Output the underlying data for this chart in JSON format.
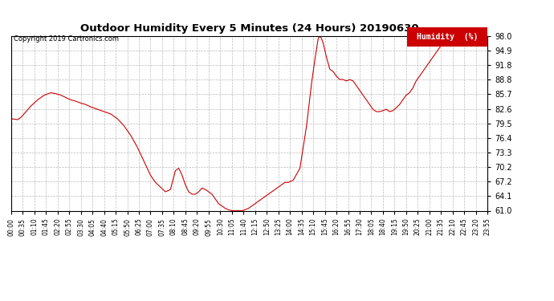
{
  "title": "Outdoor Humidity Every 5 Minutes (24 Hours) 20190630",
  "copyright": "Copyright 2019 Cartronics.com",
  "legend_label": "Humidity  (%)",
  "legend_bg": "#cc0000",
  "legend_fg": "#ffffff",
  "line_color": "#cc0000",
  "bg_color": "#ffffff",
  "plot_bg": "#ffffff",
  "grid_color": "#aaaaaa",
  "ylim": [
    61.0,
    98.0
  ],
  "yticks": [
    61.0,
    64.1,
    67.2,
    70.2,
    73.3,
    76.4,
    79.5,
    82.6,
    85.7,
    88.8,
    91.8,
    94.9,
    98.0
  ],
  "keypoints": [
    [
      0,
      80.5
    ],
    [
      4,
      80.3
    ],
    [
      6,
      80.8
    ],
    [
      9,
      82.0
    ],
    [
      12,
      83.2
    ],
    [
      16,
      84.5
    ],
    [
      20,
      85.5
    ],
    [
      24,
      86.0
    ],
    [
      27,
      85.8
    ],
    [
      30,
      85.5
    ],
    [
      34,
      84.8
    ],
    [
      36,
      84.5
    ],
    [
      39,
      84.2
    ],
    [
      42,
      83.8
    ],
    [
      45,
      83.5
    ],
    [
      48,
      83.0
    ],
    [
      52,
      82.5
    ],
    [
      56,
      82.0
    ],
    [
      60,
      81.5
    ],
    [
      64,
      80.5
    ],
    [
      68,
      79.0
    ],
    [
      72,
      77.0
    ],
    [
      76,
      74.5
    ],
    [
      80,
      71.5
    ],
    [
      84,
      68.5
    ],
    [
      87,
      67.0
    ],
    [
      90,
      66.0
    ],
    [
      93,
      65.0
    ],
    [
      96,
      65.5
    ],
    [
      99,
      69.5
    ],
    [
      101,
      70.0
    ],
    [
      103,
      68.5
    ],
    [
      105,
      66.5
    ],
    [
      107,
      65.0
    ],
    [
      109,
      64.5
    ],
    [
      111,
      64.5
    ],
    [
      113,
      65.0
    ],
    [
      115,
      65.8
    ],
    [
      117,
      65.5
    ],
    [
      119,
      65.0
    ],
    [
      121,
      64.5
    ],
    [
      123,
      63.5
    ],
    [
      125,
      62.5
    ],
    [
      127,
      62.0
    ],
    [
      129,
      61.5
    ],
    [
      131,
      61.2
    ],
    [
      133,
      61.0
    ],
    [
      135,
      61.0
    ],
    [
      137,
      61.0
    ],
    [
      139,
      61.0
    ],
    [
      141,
      61.2
    ],
    [
      143,
      61.5
    ],
    [
      145,
      62.0
    ],
    [
      147,
      62.5
    ],
    [
      149,
      63.0
    ],
    [
      151,
      63.5
    ],
    [
      153,
      64.0
    ],
    [
      155,
      64.5
    ],
    [
      157,
      65.0
    ],
    [
      159,
      65.5
    ],
    [
      161,
      66.0
    ],
    [
      163,
      66.5
    ],
    [
      165,
      67.0
    ],
    [
      167,
      67.0
    ],
    [
      170,
      67.5
    ],
    [
      174,
      70.0
    ],
    [
      178,
      79.0
    ],
    [
      181,
      88.0
    ],
    [
      183,
      93.0
    ],
    [
      185,
      97.5
    ],
    [
      186,
      98.0
    ],
    [
      187,
      97.5
    ],
    [
      188,
      96.5
    ],
    [
      190,
      93.5
    ],
    [
      192,
      91.0
    ],
    [
      194,
      90.5
    ],
    [
      196,
      89.5
    ],
    [
      198,
      88.8
    ],
    [
      200,
      88.8
    ],
    [
      202,
      88.5
    ],
    [
      204,
      88.8
    ],
    [
      206,
      88.5
    ],
    [
      208,
      87.5
    ],
    [
      210,
      86.5
    ],
    [
      212,
      85.5
    ],
    [
      214,
      84.5
    ],
    [
      216,
      83.5
    ],
    [
      218,
      82.5
    ],
    [
      220,
      82.0
    ],
    [
      222,
      82.0
    ],
    [
      224,
      82.2
    ],
    [
      226,
      82.5
    ],
    [
      228,
      82.0
    ],
    [
      230,
      82.2
    ],
    [
      232,
      82.8
    ],
    [
      234,
      83.5
    ],
    [
      236,
      84.5
    ],
    [
      238,
      85.5
    ],
    [
      240,
      86.0
    ],
    [
      242,
      87.0
    ],
    [
      244,
      88.5
    ],
    [
      246,
      89.5
    ],
    [
      248,
      90.5
    ],
    [
      250,
      91.5
    ],
    [
      252,
      92.5
    ],
    [
      254,
      93.5
    ],
    [
      256,
      94.5
    ],
    [
      258,
      95.5
    ],
    [
      260,
      96.5
    ],
    [
      262,
      97.0
    ],
    [
      264,
      97.5
    ],
    [
      266,
      97.5
    ],
    [
      268,
      97.5
    ],
    [
      270,
      97.8
    ],
    [
      272,
      97.5
    ],
    [
      274,
      97.5
    ],
    [
      276,
      97.8
    ],
    [
      278,
      97.5
    ],
    [
      280,
      97.8
    ],
    [
      282,
      97.5
    ],
    [
      284,
      97.8
    ],
    [
      286,
      97.5
    ],
    [
      287,
      97.8
    ]
  ]
}
